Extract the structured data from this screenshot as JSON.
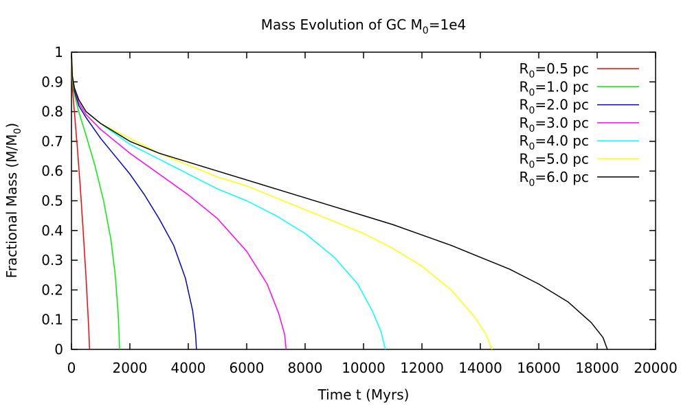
{
  "chart_data": {
    "type": "line",
    "title": "Mass Evolution of GC M",
    "title_sub": "0",
    "title_tail": "=1e4",
    "xlabel": "Time t (Myrs)",
    "ylabel": "Fractional Mass (M/M",
    "ylabel_sub": "0",
    "ylabel_tail": ")",
    "xlim": [
      0,
      20000
    ],
    "ylim": [
      0,
      1
    ],
    "xticks": [
      0,
      2000,
      4000,
      6000,
      8000,
      10000,
      12000,
      14000,
      16000,
      18000,
      20000
    ],
    "yticks": [
      0,
      0.1,
      0.2,
      0.3,
      0.4,
      0.5,
      0.6,
      0.7,
      0.8,
      0.9,
      1
    ],
    "legend_position": "top-right",
    "grid": false,
    "series": [
      {
        "name": "R",
        "name_sub": "0",
        "name_tail": "=0.5 pc",
        "color": "#ff0000",
        "points": [
          [
            0,
            1
          ],
          [
            10,
            0.92
          ],
          [
            40,
            0.87
          ],
          [
            100,
            0.8
          ],
          [
            200,
            0.68
          ],
          [
            300,
            0.55
          ],
          [
            400,
            0.4
          ],
          [
            500,
            0.24
          ],
          [
            560,
            0.13
          ],
          [
            600,
            0.05
          ],
          [
            620,
            0
          ]
        ]
      },
      {
        "name": "R",
        "name_sub": "0",
        "name_tail": "=1.0 pc",
        "color": "#00ee00",
        "points": [
          [
            0,
            1
          ],
          [
            20,
            0.92
          ],
          [
            60,
            0.88
          ],
          [
            120,
            0.85
          ],
          [
            250,
            0.8
          ],
          [
            500,
            0.72
          ],
          [
            800,
            0.62
          ],
          [
            1100,
            0.5
          ],
          [
            1350,
            0.37
          ],
          [
            1500,
            0.25
          ],
          [
            1600,
            0.12
          ],
          [
            1650,
            0
          ]
        ]
      },
      {
        "name": "R",
        "name_sub": "0",
        "name_tail": "=2.0 pc",
        "color": "#0000cc",
        "points": [
          [
            0,
            1
          ],
          [
            30,
            0.92
          ],
          [
            100,
            0.87
          ],
          [
            250,
            0.82
          ],
          [
            500,
            0.78
          ],
          [
            1000,
            0.71
          ],
          [
            1500,
            0.65
          ],
          [
            2000,
            0.59
          ],
          [
            2500,
            0.52
          ],
          [
            3000,
            0.44
          ],
          [
            3500,
            0.35
          ],
          [
            3900,
            0.24
          ],
          [
            4150,
            0.13
          ],
          [
            4250,
            0.05
          ],
          [
            4280,
            0
          ]
        ]
      },
      {
        "name": "R",
        "name_sub": "0",
        "name_tail": "=3.0 pc",
        "color": "#ff00ff",
        "points": [
          [
            0,
            1
          ],
          [
            30,
            0.92
          ],
          [
            100,
            0.88
          ],
          [
            250,
            0.83
          ],
          [
            500,
            0.79
          ],
          [
            1000,
            0.74
          ],
          [
            2000,
            0.66
          ],
          [
            3000,
            0.59
          ],
          [
            4000,
            0.52
          ],
          [
            5000,
            0.44
          ],
          [
            6000,
            0.33
          ],
          [
            6700,
            0.22
          ],
          [
            7100,
            0.12
          ],
          [
            7300,
            0.05
          ],
          [
            7350,
            0
          ]
        ]
      },
      {
        "name": "R",
        "name_sub": "0",
        "name_tail": "=4.0 pc",
        "color": "#00ffff",
        "points": [
          [
            0,
            1
          ],
          [
            30,
            0.92
          ],
          [
            100,
            0.88
          ],
          [
            250,
            0.84
          ],
          [
            500,
            0.8
          ],
          [
            1000,
            0.76
          ],
          [
            2000,
            0.69
          ],
          [
            3000,
            0.64
          ],
          [
            4000,
            0.59
          ],
          [
            5000,
            0.54
          ],
          [
            6000,
            0.5
          ],
          [
            7000,
            0.45
          ],
          [
            8000,
            0.39
          ],
          [
            9000,
            0.31
          ],
          [
            9800,
            0.22
          ],
          [
            10300,
            0.13
          ],
          [
            10600,
            0.06
          ],
          [
            10750,
            0
          ]
        ]
      },
      {
        "name": "R",
        "name_sub": "0",
        "name_tail": "=5.0 pc",
        "color": "#ffff00",
        "points": [
          [
            0,
            1
          ],
          [
            30,
            0.92
          ],
          [
            100,
            0.88
          ],
          [
            250,
            0.84
          ],
          [
            500,
            0.8
          ],
          [
            1000,
            0.76
          ],
          [
            2000,
            0.71
          ],
          [
            3000,
            0.66
          ],
          [
            4000,
            0.62
          ],
          [
            5000,
            0.58
          ],
          [
            6000,
            0.55
          ],
          [
            7000,
            0.51
          ],
          [
            8000,
            0.47
          ],
          [
            9000,
            0.43
          ],
          [
            10000,
            0.39
          ],
          [
            11000,
            0.34
          ],
          [
            12000,
            0.28
          ],
          [
            13000,
            0.2
          ],
          [
            13800,
            0.11
          ],
          [
            14200,
            0.05
          ],
          [
            14400,
            0
          ]
        ]
      },
      {
        "name": "R",
        "name_sub": "0",
        "name_tail": "=6.0 pc",
        "color": "#000000",
        "points": [
          [
            0,
            1
          ],
          [
            30,
            0.92
          ],
          [
            100,
            0.88
          ],
          [
            250,
            0.84
          ],
          [
            500,
            0.8
          ],
          [
            1000,
            0.76
          ],
          [
            2000,
            0.7
          ],
          [
            3000,
            0.66
          ],
          [
            4000,
            0.63
          ],
          [
            5000,
            0.6
          ],
          [
            6000,
            0.57
          ],
          [
            7000,
            0.54
          ],
          [
            8000,
            0.51
          ],
          [
            9000,
            0.48
          ],
          [
            10000,
            0.45
          ],
          [
            11000,
            0.42
          ],
          [
            12000,
            0.385
          ],
          [
            13000,
            0.35
          ],
          [
            14000,
            0.31
          ],
          [
            15000,
            0.27
          ],
          [
            16000,
            0.22
          ],
          [
            17000,
            0.16
          ],
          [
            17800,
            0.09
          ],
          [
            18200,
            0.04
          ],
          [
            18350,
            0
          ]
        ]
      }
    ]
  }
}
